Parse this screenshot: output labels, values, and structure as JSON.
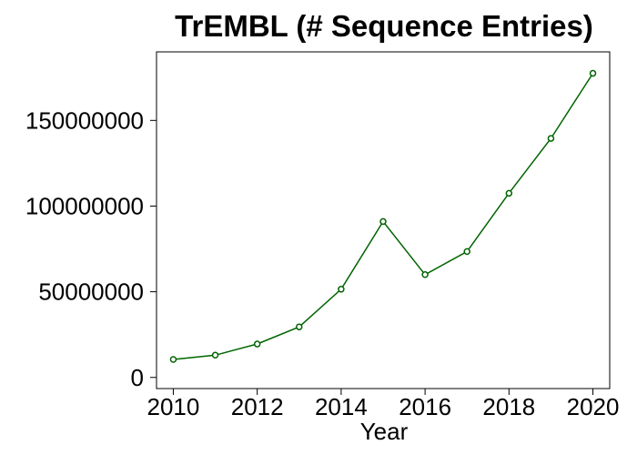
{
  "chart_data": {
    "type": "line",
    "title": "TrEMBL (# Sequence Entries)",
    "xlabel": "Year",
    "ylabel": "",
    "x": [
      2010,
      2011,
      2012,
      2013,
      2014,
      2015,
      2016,
      2017,
      2018,
      2019,
      2020
    ],
    "series": [
      {
        "values": [
          10500000,
          13000000,
          19500000,
          29500000,
          51500000,
          91000000,
          60000000,
          73500000,
          107500000,
          139500000,
          177500000
        ]
      }
    ],
    "xticks": [
      2010,
      2012,
      2014,
      2016,
      2018,
      2020
    ],
    "yticks": [
      0,
      50000000,
      100000000,
      150000000
    ],
    "xtick_labels": [
      "2010",
      "2012",
      "2014",
      "2016",
      "2018",
      "2020"
    ],
    "ytick_labels": [
      "0",
      "50000000",
      "100000000",
      "150000000"
    ],
    "xlim": [
      2009.6,
      2020.4
    ],
    "ylim": [
      -6500000,
      190000000
    ],
    "grid": false,
    "legend": "none",
    "colors": {
      "line": "#006400",
      "marker_fill": "#ffffff",
      "frame": "#000000"
    },
    "marker": "open-circle"
  }
}
